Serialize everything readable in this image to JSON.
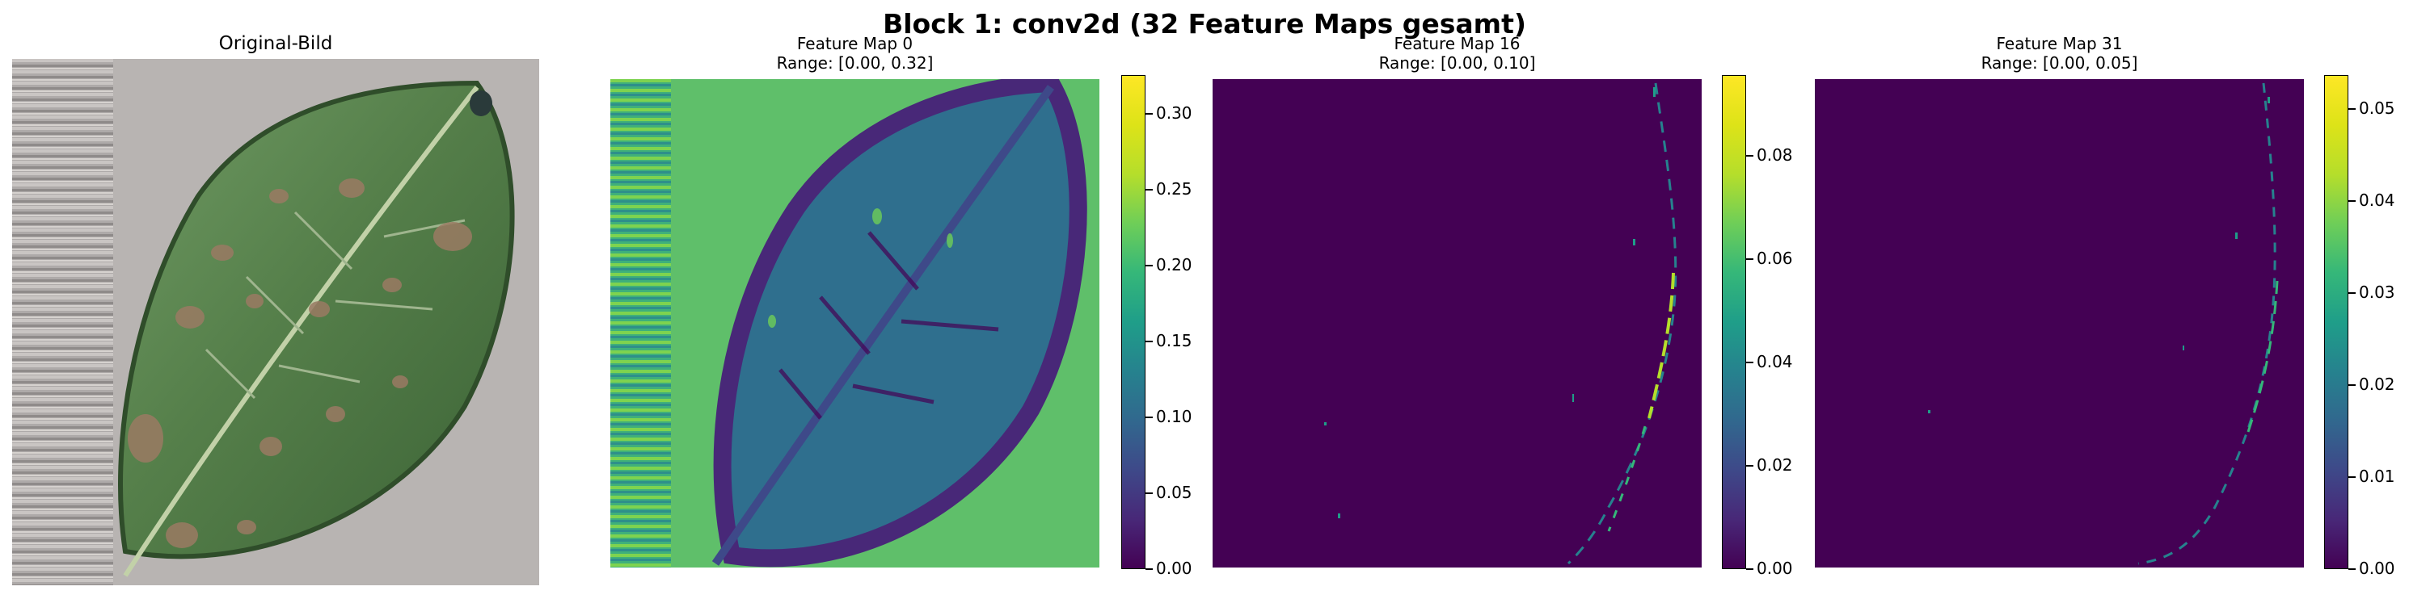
{
  "figure_title": "Block 1: conv2d (32 Feature Maps gesamt)",
  "colors": {
    "viridis_min": "#440154",
    "viridis_max": "#fde725",
    "leaf_green": "#4f7a45",
    "background_gray": "#b8b4b2"
  },
  "original": {
    "title": "Original-Bild"
  },
  "chart_data": [
    {
      "type": "heatmap",
      "title": "Feature Map 0",
      "subtitle": "Range: [0.00, 0.32]",
      "colormap": "viridis",
      "colorbar_range": [
        0.0,
        0.32
      ],
      "colorbar_ticks": [
        "0.00",
        "0.05",
        "0.10",
        "0.15",
        "0.20",
        "0.25",
        "0.30"
      ],
      "colorbar_tick_values": [
        0.0,
        0.05,
        0.1,
        0.15,
        0.2,
        0.25,
        0.3
      ]
    },
    {
      "type": "heatmap",
      "title": "Feature Map 16",
      "subtitle": "Range: [0.00, 0.10]",
      "colormap": "viridis",
      "colorbar_range": [
        0.0,
        0.095
      ],
      "colorbar_ticks": [
        "0.00",
        "0.02",
        "0.04",
        "0.06",
        "0.08"
      ],
      "colorbar_tick_values": [
        0.0,
        0.02,
        0.04,
        0.06,
        0.08
      ]
    },
    {
      "type": "heatmap",
      "title": "Feature Map 31",
      "subtitle": "Range: [0.00, 0.05]",
      "colormap": "viridis",
      "colorbar_range": [
        0.0,
        0.0535
      ],
      "colorbar_ticks": [
        "0.00",
        "0.01",
        "0.02",
        "0.03",
        "0.04",
        "0.05"
      ],
      "colorbar_tick_values": [
        0.0,
        0.01,
        0.02,
        0.03,
        0.04,
        0.05
      ]
    }
  ]
}
